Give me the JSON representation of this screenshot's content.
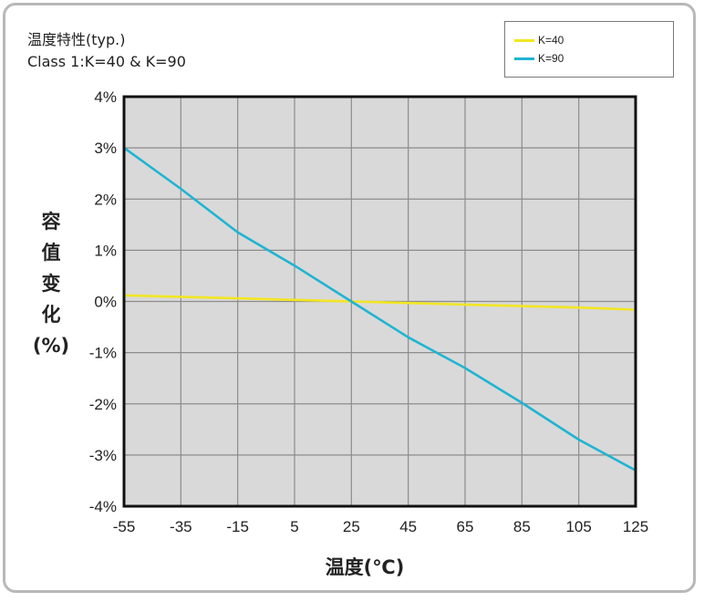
{
  "chart_data": {
    "type": "line",
    "title": "温度特性(typ.)",
    "subtitle": "Class 1:K=40 & K=90",
    "xlabel": "温度(℃)",
    "ylabel": [
      "容",
      "值",
      "变",
      "化",
      "(%)"
    ],
    "x": [
      -55,
      -35,
      -15,
      5,
      25,
      45,
      65,
      85,
      105,
      125
    ],
    "xlim": [
      -55,
      125
    ],
    "ylim": [
      -4,
      4
    ],
    "x_tick_labels": [
      "-55",
      "-35",
      "-15",
      "5",
      "25",
      "45",
      "65",
      "85",
      "105",
      "125"
    ],
    "y_tick_values": [
      4,
      3,
      2,
      1,
      0,
      -1,
      -2,
      -3,
      -4
    ],
    "y_tick_labels": [
      "4%",
      "3%",
      "2%",
      "1%",
      "0%",
      "-1%",
      "-2%",
      "-3%",
      "-4%"
    ],
    "grid": true,
    "legend_position": "top-right",
    "plot_background": "#d9d9d9",
    "series": [
      {
        "name": "K=40",
        "color": "#f2e622",
        "values": [
          0.12,
          0.09,
          0.06,
          0.03,
          0.0,
          -0.03,
          -0.06,
          -0.09,
          -0.12,
          -0.16
        ]
      },
      {
        "name": "K=90",
        "color": "#1fb4d2",
        "values": [
          3.0,
          2.2,
          1.35,
          0.7,
          0.0,
          -0.7,
          -1.3,
          -1.98,
          -2.7,
          -3.3
        ]
      }
    ]
  }
}
